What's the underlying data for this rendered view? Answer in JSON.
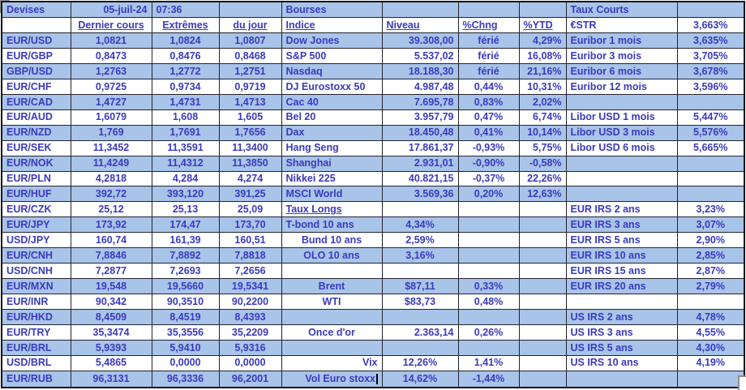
{
  "colors": {
    "row_blue": "#a9c4e9",
    "row_white": "#ffffff",
    "text_blue": "#3a3abf",
    "grid_line": "#23232e"
  },
  "grid": {
    "columns": [
      {
        "name": "devises",
        "align": "l"
      },
      {
        "name": "dernier-cours",
        "align": "c"
      },
      {
        "name": "extremes",
        "align": "c"
      },
      {
        "name": "du-jour",
        "align": "c"
      },
      {
        "name": "indice",
        "align": "l"
      },
      {
        "name": "niveau",
        "align": "r"
      },
      {
        "name": "pct-chng",
        "align": "c"
      },
      {
        "name": "pct-ytd",
        "align": "r"
      },
      {
        "name": "taux-courts-label",
        "align": "l"
      },
      {
        "name": "taux-courts-value",
        "align": "c"
      }
    ],
    "rows": [
      [
        {
          "t": "Devises"
        },
        {
          "t": "05-juil-24",
          "a": "r"
        },
        {
          "t": "07:36",
          "a": "l"
        },
        {},
        {
          "t": "Bourses"
        },
        {},
        {},
        {},
        {
          "t": "Taux Courts"
        },
        {}
      ],
      [
        {},
        {
          "t": "Dernier cours",
          "u": true
        },
        {
          "t": "Extrêmes",
          "u": true
        },
        {
          "t": "du jour",
          "u": true
        },
        {
          "t": "Indice",
          "u": true
        },
        {
          "t": "Niveau",
          "u": true,
          "a": "l"
        },
        {
          "t": "%Chng",
          "u": true,
          "a": "l"
        },
        {
          "t": "%YTD",
          "u": true,
          "a": "l"
        },
        {
          "t": "€STR"
        },
        {
          "t": "3,663%"
        }
      ],
      [
        {
          "t": "EUR/USD"
        },
        {
          "t": "1,0821"
        },
        {
          "t": "1,0824"
        },
        {
          "t": "1,0807"
        },
        {
          "t": "Dow Jones"
        },
        {
          "t": "39.308,00"
        },
        {
          "t": "férié"
        },
        {
          "t": "4,29%"
        },
        {
          "t": "Euribor 1 mois"
        },
        {
          "t": "3,635%"
        }
      ],
      [
        {
          "t": "EUR/GBP"
        },
        {
          "t": "0,8473"
        },
        {
          "t": "0,8476"
        },
        {
          "t": "0,8468"
        },
        {
          "t": "S&P 500"
        },
        {
          "t": "5.537,02"
        },
        {
          "t": "férié"
        },
        {
          "t": "16,08%"
        },
        {
          "t": "Euribor 3 mois"
        },
        {
          "t": "3,705%"
        }
      ],
      [
        {
          "t": "GBP/USD"
        },
        {
          "t": "1,2763"
        },
        {
          "t": "1,2772"
        },
        {
          "t": "1,2751"
        },
        {
          "t": "Nasdaq"
        },
        {
          "t": "18.188,30"
        },
        {
          "t": "férié"
        },
        {
          "t": "21,16%"
        },
        {
          "t": "Euribor 6 mois"
        },
        {
          "t": "3,678%"
        }
      ],
      [
        {
          "t": "EUR/CHF"
        },
        {
          "t": "0,9725"
        },
        {
          "t": "0,9734"
        },
        {
          "t": "0,9719"
        },
        {
          "t": "DJ Eurostoxx 50"
        },
        {
          "t": "4.987,48"
        },
        {
          "t": "0,44%"
        },
        {
          "t": "10,31%"
        },
        {
          "t": "Euribor 12 mois"
        },
        {
          "t": "3,596%"
        }
      ],
      [
        {
          "t": "EUR/CAD"
        },
        {
          "t": "1,4727"
        },
        {
          "t": "1,4731"
        },
        {
          "t": "1,4713"
        },
        {
          "t": "Cac 40"
        },
        {
          "t": "7.695,78"
        },
        {
          "t": "0,83%"
        },
        {
          "t": "2,02%"
        },
        {},
        {}
      ],
      [
        {
          "t": "EUR/AUD"
        },
        {
          "t": "1,6079"
        },
        {
          "t": "1,608"
        },
        {
          "t": "1,605"
        },
        {
          "t": "Bel 20"
        },
        {
          "t": "3.957,79"
        },
        {
          "t": "0,47%"
        },
        {
          "t": "6,74%"
        },
        {
          "t": "Libor USD 1 mois"
        },
        {
          "t": "5,447%"
        }
      ],
      [
        {
          "t": "EUR/NZD"
        },
        {
          "t": "1,769"
        },
        {
          "t": "1,7691"
        },
        {
          "t": "1,7656"
        },
        {
          "t": "Dax"
        },
        {
          "t": "18.450,48"
        },
        {
          "t": "0,41%"
        },
        {
          "t": "10,14%"
        },
        {
          "t": "Libor USD 3 mois"
        },
        {
          "t": "5,576%"
        }
      ],
      [
        {
          "t": "EUR/SEK"
        },
        {
          "t": "11,3452"
        },
        {
          "t": "11,3591"
        },
        {
          "t": "11,3400"
        },
        {
          "t": "Hang Seng"
        },
        {
          "t": "17.861,37"
        },
        {
          "t": "-0,93%"
        },
        {
          "t": "5,75%"
        },
        {
          "t": "Libor USD 6 mois"
        },
        {
          "t": "5,665%"
        }
      ],
      [
        {
          "t": "EUR/NOK"
        },
        {
          "t": "11,4249"
        },
        {
          "t": "11,4312"
        },
        {
          "t": "11,3850"
        },
        {
          "t": "Shanghai"
        },
        {
          "t": "2.931,01"
        },
        {
          "t": "-0,90%"
        },
        {
          "t": "-0,58%"
        },
        {},
        {}
      ],
      [
        {
          "t": "EUR/PLN"
        },
        {
          "t": "4,2818"
        },
        {
          "t": "4,284"
        },
        {
          "t": "4,274"
        },
        {
          "t": "Nikkei 225"
        },
        {
          "t": "40.821,15"
        },
        {
          "t": "-0,37%"
        },
        {
          "t": "22,26%"
        },
        {},
        {}
      ],
      [
        {
          "t": "EUR/HUF"
        },
        {
          "t": "392,72"
        },
        {
          "t": "393,120"
        },
        {
          "t": "391,25"
        },
        {
          "t": "MSCI World"
        },
        {
          "t": "3.569,36"
        },
        {
          "t": "0,20%"
        },
        {
          "t": "12,63%"
        },
        {},
        {}
      ],
      [
        {
          "t": "EUR/CZK"
        },
        {
          "t": "25,12"
        },
        {
          "t": "25,13"
        },
        {
          "t": "25,09"
        },
        {
          "t": "Taux Longs",
          "u": true
        },
        {},
        {},
        {},
        {
          "t": "EUR IRS 2 ans"
        },
        {
          "t": "3,23%"
        }
      ],
      [
        {
          "t": "EUR/JPY"
        },
        {
          "t": "173,92"
        },
        {
          "t": "174,47"
        },
        {
          "t": "173,70"
        },
        {
          "t": "T-bond 10 ans"
        },
        {
          "t": "4,34%",
          "a": "c"
        },
        {},
        {},
        {
          "t": "EUR IRS 3 ans"
        },
        {
          "t": "3,07%"
        }
      ],
      [
        {
          "t": "USD/JPY"
        },
        {
          "t": "160,74"
        },
        {
          "t": "161,39"
        },
        {
          "t": "160,51"
        },
        {
          "t": "Bund 10 ans",
          "a": "c"
        },
        {
          "t": "2,59%",
          "a": "c"
        },
        {},
        {},
        {
          "t": "EUR IRS 5 ans"
        },
        {
          "t": "2,90%"
        }
      ],
      [
        {
          "t": "EUR/CNH"
        },
        {
          "t": "7,8846"
        },
        {
          "t": "7,8892"
        },
        {
          "t": "7,8818"
        },
        {
          "t": "OLO 10 ans",
          "a": "c"
        },
        {
          "t": "3,16%",
          "a": "c"
        },
        {},
        {},
        {
          "t": "EUR IRS 10 ans"
        },
        {
          "t": "2,85%"
        }
      ],
      [
        {
          "t": "USD/CNH"
        },
        {
          "t": "7,2877"
        },
        {
          "t": "7,2693"
        },
        {
          "t": "7,2656"
        },
        {},
        {},
        {},
        {},
        {
          "t": "EUR IRS 15 ans"
        },
        {
          "t": "2,87%"
        }
      ],
      [
        {
          "t": "EUR/MXN"
        },
        {
          "t": "19,548"
        },
        {
          "t": "19,5660"
        },
        {
          "t": "19,5341"
        },
        {
          "t": "Brent",
          "a": "c"
        },
        {
          "t": "$87,11",
          "a": "c"
        },
        {
          "t": "0,33%"
        },
        {},
        {
          "t": "EUR IRS 20 ans"
        },
        {
          "t": "2,79%"
        }
      ],
      [
        {
          "t": "EUR/INR"
        },
        {
          "t": "90,342"
        },
        {
          "t": "90,3510"
        },
        {
          "t": "90,2200"
        },
        {
          "t": "WTI",
          "a": "c"
        },
        {
          "t": "$83,73",
          "a": "c"
        },
        {
          "t": "0,48%"
        },
        {},
        {},
        {}
      ],
      [
        {
          "t": "EUR/HKD"
        },
        {
          "t": "8,4509"
        },
        {
          "t": "8,4519"
        },
        {
          "t": "8,4393"
        },
        {},
        {},
        {},
        {},
        {
          "t": "US IRS 2 ans"
        },
        {
          "t": "4,78%"
        }
      ],
      [
        {
          "t": "EUR/TRY"
        },
        {
          "t": "35,3474"
        },
        {
          "t": "35,3556"
        },
        {
          "t": "35,2209"
        },
        {
          "t": "Once d'or",
          "a": "c"
        },
        {
          "t": "2.363,14"
        },
        {
          "t": "0,26%"
        },
        {},
        {
          "t": "US IRS 3 ans"
        },
        {
          "t": "4,55%"
        }
      ],
      [
        {
          "t": "EUR/BRL"
        },
        {
          "t": "5,9393"
        },
        {
          "t": "5,9410"
        },
        {
          "t": "5,9316"
        },
        {},
        {},
        {},
        {},
        {
          "t": "US IRS 5 ans"
        },
        {
          "t": "4,30%"
        }
      ],
      [
        {
          "t": "USD/BRL"
        },
        {
          "t": "5,4865"
        },
        {
          "t": "0,0000"
        },
        {
          "t": "0,0000"
        },
        {
          "t": "Vix",
          "a": "r"
        },
        {
          "t": "12,26%",
          "a": "c"
        },
        {
          "t": "1,41%"
        },
        {},
        {
          "t": "US IRS 10 ans"
        },
        {
          "t": "4,19%"
        }
      ],
      [
        {
          "t": "EUR/RUB"
        },
        {
          "t": "96,3131"
        },
        {
          "t": "96,3336"
        },
        {
          "t": "96,2001"
        },
        {
          "t": "Vol Euro stoxx",
          "a": "r",
          "cursor": true
        },
        {
          "t": "14,62%",
          "a": "c"
        },
        {
          "t": "-1,44%"
        },
        {},
        {},
        {}
      ]
    ]
  }
}
